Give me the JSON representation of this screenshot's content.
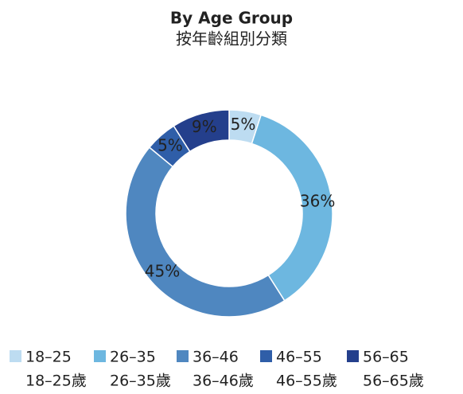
{
  "chart_data": {
    "type": "donut",
    "title": "By Age Group",
    "subtitle": "按年齡組別分類",
    "categories": [
      "18–25",
      "26–35",
      "36–46",
      "46–55",
      "56–65"
    ],
    "categories_zh": [
      "18–25歲",
      "26–35歲",
      "36–46歲",
      "46–55歲",
      "56–65歲"
    ],
    "values": [
      5,
      36,
      45,
      5,
      9
    ],
    "value_labels": [
      "5%",
      "36%",
      "45%",
      "5%",
      "9%"
    ],
    "colors": [
      "#bddcf1",
      "#6db7e0",
      "#4f87c0",
      "#2f5ea8",
      "#243f8c"
    ],
    "legend": "bottom"
  }
}
